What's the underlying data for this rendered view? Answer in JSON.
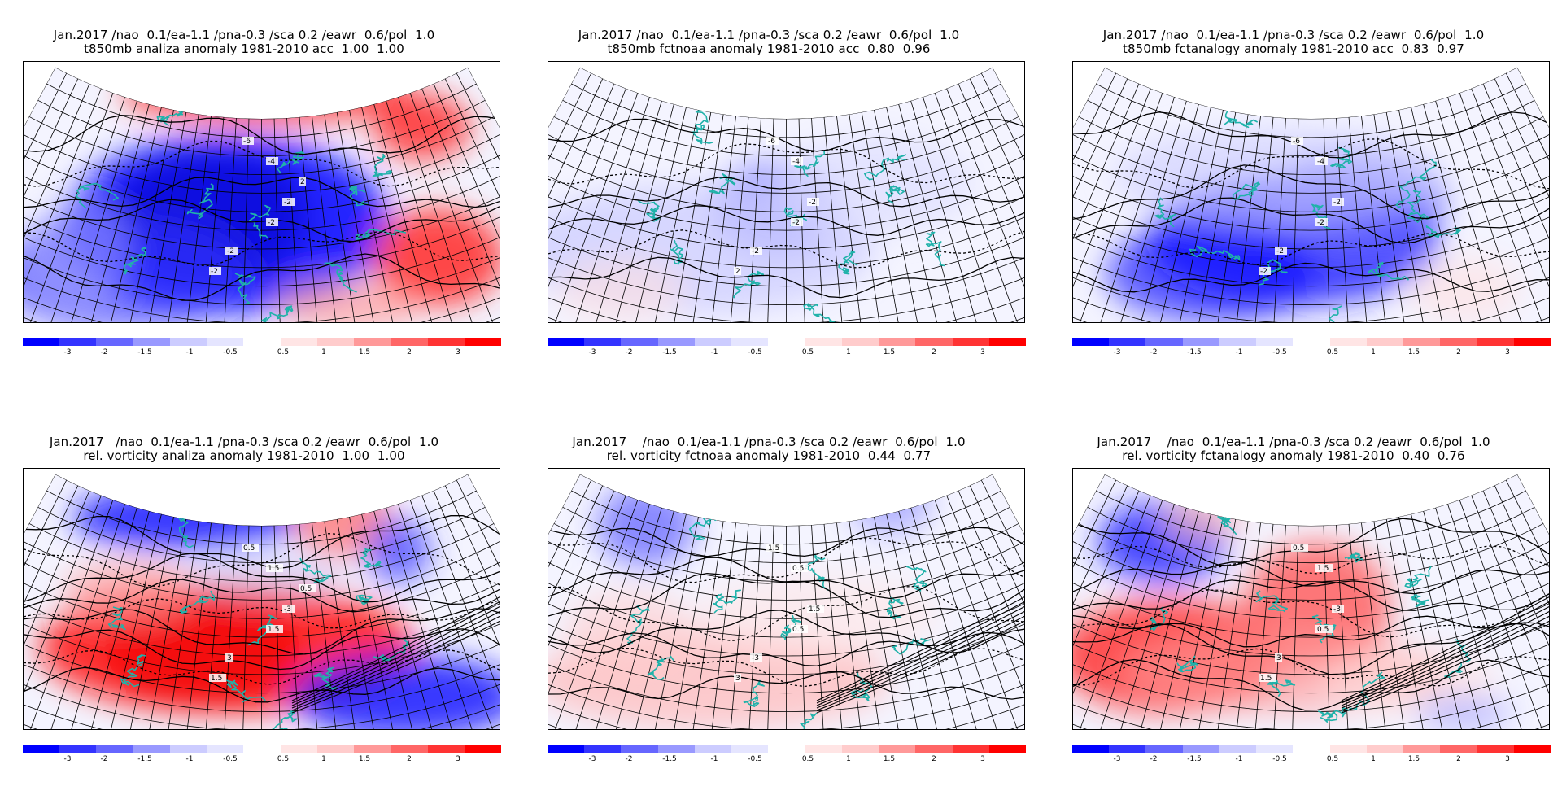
{
  "panels": [
    {
      "title1": "Jan.2017 /nao  0.1/ea-1.1 /pna-0.3 /sca 0.2 /eawr  0.6/pol  1.0",
      "title2": "t850mb analiza anomaly 1981-2010 acc  1.00  1.00",
      "kind": "temp",
      "field": "strong",
      "labels": [
        "-6",
        "-4",
        "-2",
        "-2",
        "-2",
        "-2",
        "2"
      ]
    },
    {
      "title1": "Jan.2017 /nao  0.1/ea-1.1 /pna-0.3 /sca 0.2 /eawr  0.6/pol  1.0",
      "title2": "t850mb fctnoaa anomaly 1981-2010 acc  0.80  0.96",
      "kind": "temp",
      "field": "weak",
      "labels": [
        "-6",
        "-4",
        "-2",
        "-2",
        "-2",
        "2"
      ]
    },
    {
      "title1": "Jan.2017 /nao  0.1/ea-1.1 /pna-0.3 /sca 0.2 /eawr  0.6/pol  1.0",
      "title2": "t850mb fctanalogy anomaly 1981-2010 acc  0.83  0.97",
      "kind": "temp",
      "field": "medium",
      "labels": [
        "-6",
        "-4",
        "-2",
        "-2",
        "-2",
        "-2"
      ]
    },
    {
      "title1": "Jan.2017   /nao  0.1/ea-1.1 /pna-0.3 /sca 0.2 /eawr  0.6/pol  1.0",
      "title2": "rel. vorticity analiza anomaly 1981-2010  1.00  1.00",
      "kind": "vort",
      "field": "strong",
      "labels": [
        "0.5",
        "1.5",
        "-3",
        "1.5",
        "3",
        "1.5",
        "0.5"
      ]
    },
    {
      "title1": "Jan.2017    /nao  0.1/ea-1.1 /pna-0.3 /sca 0.2 /eawr  0.6/pol  1.0",
      "title2": "rel. vorticity fctnoaa anomaly 1981-2010  0.44  0.77",
      "kind": "vort",
      "field": "weak",
      "labels": [
        "1.5",
        "0.5",
        "1.5",
        "0.5",
        "-3",
        "3"
      ]
    },
    {
      "title1": "Jan.2017    /nao  0.1/ea-1.1 /pna-0.3 /sca 0.2 /eawr  0.6/pol  1.0",
      "title2": "rel. vorticity fctanalogy anomaly 1981-2010  0.40  0.76",
      "kind": "vort",
      "field": "medium",
      "labels": [
        "0.5",
        "1.5",
        "-3",
        "0.5",
        "3",
        "1.5"
      ]
    }
  ],
  "colorbar": {
    "colors": [
      "#0000ff",
      "#3333ff",
      "#6666ff",
      "#9999ff",
      "#ccccff",
      "#e5e5ff",
      "#ffffff",
      "#ffe5e5",
      "#ffcccc",
      "#ff9999",
      "#ff6666",
      "#ff3333",
      "#ff0000"
    ],
    "ticks": [
      "-3",
      "-2",
      "-1.5",
      "-1",
      "-0.5",
      "0.5",
      "1",
      "1.5",
      "2",
      "3"
    ]
  },
  "map_colors": {
    "coast": "#20b2aa",
    "grid": "#000000",
    "contour": "#000000"
  }
}
